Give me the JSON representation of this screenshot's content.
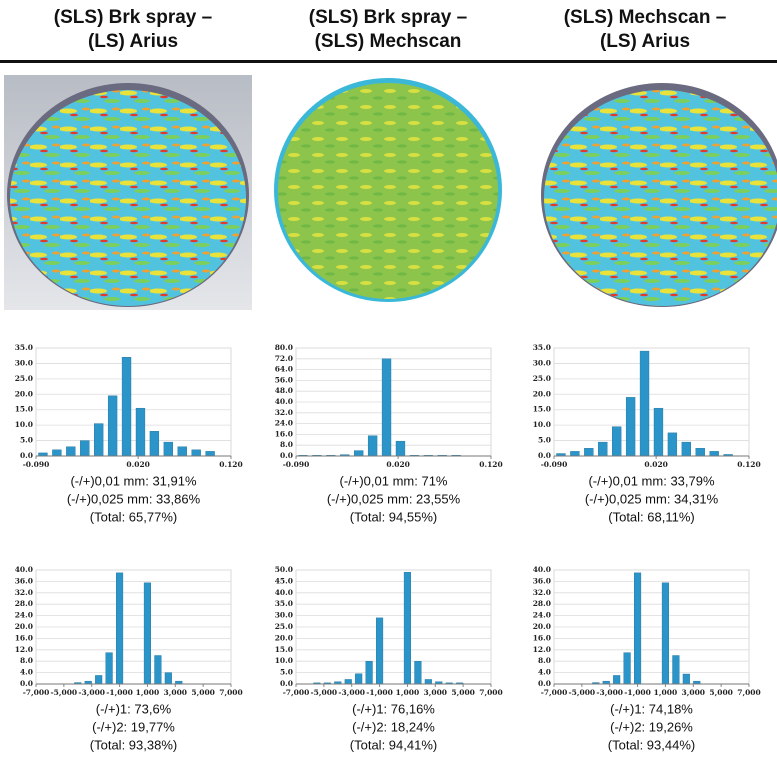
{
  "columns": [
    {
      "title": [
        "(SLS) Brk spray –",
        "(LS) Arius"
      ]
    },
    {
      "title": [
        "(SLS) Brk spray –",
        "(SLS) Mechscan"
      ]
    },
    {
      "title": [
        "(SLS) Mechscan –",
        "(LS) Arius"
      ]
    }
  ],
  "chart_data": [
    {
      "type": "histogram",
      "color": "#2b95c9",
      "grid": true,
      "bins": [
        -0.09,
        -0.075,
        -0.06,
        -0.045,
        -0.03,
        -0.015,
        0,
        0.015,
        0.03,
        0.045,
        0.06,
        0.075,
        0.09,
        0.105
      ],
      "values": [
        1,
        2,
        3,
        5,
        10.5,
        19.5,
        32,
        15.5,
        8,
        4.5,
        3,
        2,
        1.5
      ],
      "xlim": [
        -0.09,
        0.12
      ],
      "xticks": [
        {
          "value": -0.09,
          "label": "-0.090"
        },
        {
          "value": 0.02,
          "label": "0.020"
        },
        {
          "value": 0.12,
          "label": "0.120"
        }
      ],
      "ylim": [
        0,
        35
      ],
      "yticks": [
        {
          "value": 0,
          "label": "0.0"
        },
        {
          "value": 5,
          "label": "5.0"
        },
        {
          "value": 10,
          "label": "10.0"
        },
        {
          "value": 15,
          "label": "15.0"
        },
        {
          "value": 20,
          "label": "20.0"
        },
        {
          "value": 25,
          "label": "25.0"
        },
        {
          "value": 30,
          "label": "30.0"
        },
        {
          "value": 35,
          "label": "35.0"
        }
      ],
      "annotations": [
        "(-/+)0,01 mm: 31,91%",
        "(-/+)0,025 mm: 33,86%",
        "(Total: 65,77%)"
      ]
    },
    {
      "type": "histogram",
      "color": "#2b95c9",
      "grid": true,
      "bins": [
        -0.09,
        -0.075,
        -0.06,
        -0.045,
        -0.03,
        -0.015,
        0,
        0.015,
        0.03,
        0.045,
        0.06,
        0.075,
        0.09,
        0.105
      ],
      "values": [
        0.5,
        0.5,
        0.5,
        1,
        4,
        15,
        72,
        11,
        0.5,
        0.5,
        0.5,
        0.5,
        0
      ],
      "xlim": [
        -0.09,
        0.12
      ],
      "xticks": [
        {
          "value": -0.09,
          "label": "-0.090"
        },
        {
          "value": 0.02,
          "label": "0.020"
        },
        {
          "value": 0.12,
          "label": "0.120"
        }
      ],
      "ylim": [
        0,
        80
      ],
      "yticks": [
        {
          "value": 0,
          "label": "0.0"
        },
        {
          "value": 8,
          "label": "8.0"
        },
        {
          "value": 16,
          "label": "16.0"
        },
        {
          "value": 24,
          "label": "24.0"
        },
        {
          "value": 32,
          "label": "32.0"
        },
        {
          "value": 40,
          "label": "40.0"
        },
        {
          "value": 48,
          "label": "48.0"
        },
        {
          "value": 56,
          "label": "56.0"
        },
        {
          "value": 64,
          "label": "64.0"
        },
        {
          "value": 72,
          "label": "72.0"
        },
        {
          "value": 80,
          "label": "80.0"
        }
      ],
      "annotations": [
        "(-/+)0,01 mm: 71%",
        "(-/+)0,025 mm: 23,55%",
        "(Total: 94,55%)"
      ]
    },
    {
      "type": "histogram",
      "color": "#2b95c9",
      "grid": true,
      "bins": [
        -0.09,
        -0.075,
        -0.06,
        -0.045,
        -0.03,
        -0.015,
        0,
        0.015,
        0.03,
        0.045,
        0.06,
        0.075,
        0.09,
        0.105
      ],
      "values": [
        0.8,
        1.5,
        2.5,
        4.5,
        9.5,
        19,
        34,
        15.5,
        7.5,
        4.5,
        2.5,
        1.5,
        0.5
      ],
      "xlim": [
        -0.09,
        0.12
      ],
      "xticks": [
        {
          "value": -0.09,
          "label": "-0.090"
        },
        {
          "value": 0.02,
          "label": "0.020"
        },
        {
          "value": 0.12,
          "label": "0.120"
        }
      ],
      "ylim": [
        0,
        35
      ],
      "yticks": [
        {
          "value": 0,
          "label": "0.0"
        },
        {
          "value": 5,
          "label": "5.0"
        },
        {
          "value": 10,
          "label": "10.0"
        },
        {
          "value": 15,
          "label": "15.0"
        },
        {
          "value": 20,
          "label": "20.0"
        },
        {
          "value": 25,
          "label": "25.0"
        },
        {
          "value": 30,
          "label": "30.0"
        },
        {
          "value": 35,
          "label": "35.0"
        }
      ],
      "annotations": [
        "(-/+)0,01 mm: 33,79%",
        "(-/+)0,025 mm: 34,31%",
        "(Total: 68,11%)"
      ]
    },
    {
      "type": "histogram",
      "color": "#2b95c9",
      "grid": true,
      "bins": [
        -6625,
        -5875,
        -5125,
        -4375,
        -3625,
        -2875,
        -2125,
        -1375,
        -625,
        625,
        1375,
        2125,
        2875,
        3625,
        4375,
        5125,
        5875,
        6625
      ],
      "values": [
        0,
        0,
        0,
        0.5,
        1,
        3,
        11,
        39,
        0,
        35.5,
        10,
        4,
        1,
        0,
        0,
        0,
        0
      ],
      "xlim": [
        -7000,
        7000
      ],
      "xticks": [
        {
          "value": -7000,
          "label": "-7,000"
        },
        {
          "value": -5000,
          "label": "-5,000"
        },
        {
          "value": -3000,
          "label": "-3,000"
        },
        {
          "value": -1000,
          "label": "-1,000"
        },
        {
          "value": 1000,
          "label": "1,000"
        },
        {
          "value": 3000,
          "label": "3,000"
        },
        {
          "value": 5000,
          "label": "5,000"
        },
        {
          "value": 7000,
          "label": "7,000"
        }
      ],
      "ylim": [
        0,
        40
      ],
      "yticks": [
        {
          "value": 0,
          "label": "0.0"
        },
        {
          "value": 4,
          "label": "4.0"
        },
        {
          "value": 8,
          "label": "8.0"
        },
        {
          "value": 12,
          "label": "12.0"
        },
        {
          "value": 16,
          "label": "16.0"
        },
        {
          "value": 20,
          "label": "20.0"
        },
        {
          "value": 24,
          "label": "24.0"
        },
        {
          "value": 28,
          "label": "28.0"
        },
        {
          "value": 32,
          "label": "32.0"
        },
        {
          "value": 36,
          "label": "36.0"
        },
        {
          "value": 40,
          "label": "40.0"
        }
      ],
      "annotations": [
        "(-/+)1: 73,6%",
        "(-/+)2: 19,77%",
        "(Total: 93,38%)"
      ]
    },
    {
      "type": "histogram",
      "color": "#2b95c9",
      "grid": true,
      "bins": [
        -6625,
        -5875,
        -5125,
        -4375,
        -3625,
        -2875,
        -2125,
        -1375,
        -625,
        625,
        1375,
        2125,
        2875,
        3625,
        4375,
        5125,
        5875,
        6625
      ],
      "values": [
        0,
        0.5,
        0.5,
        1,
        2,
        4.5,
        10,
        29,
        0,
        49,
        10,
        2,
        1,
        0.5,
        0.5,
        0,
        0
      ],
      "xlim": [
        -7000,
        7000
      ],
      "xticks": [
        {
          "value": -7000,
          "label": "-7,000"
        },
        {
          "value": -5000,
          "label": "-5,000"
        },
        {
          "value": -3000,
          "label": "-3,000"
        },
        {
          "value": -1000,
          "label": "-1,000"
        },
        {
          "value": 1000,
          "label": "1,000"
        },
        {
          "value": 3000,
          "label": "3,000"
        },
        {
          "value": 5000,
          "label": "5,000"
        },
        {
          "value": 7000,
          "label": "7,000"
        }
      ],
      "ylim": [
        0,
        50
      ],
      "yticks": [
        {
          "value": 0,
          "label": "0.0"
        },
        {
          "value": 5,
          "label": "5.0"
        },
        {
          "value": 10,
          "label": "10.0"
        },
        {
          "value": 15,
          "label": "15.0"
        },
        {
          "value": 20,
          "label": "20.0"
        },
        {
          "value": 25,
          "label": "25.0"
        },
        {
          "value": 30,
          "label": "30.0"
        },
        {
          "value": 35,
          "label": "35.0"
        },
        {
          "value": 40,
          "label": "40.0"
        },
        {
          "value": 45,
          "label": "45.0"
        },
        {
          "value": 50,
          "label": "50.0"
        }
      ],
      "annotations": [
        "(-/+)1: 76,16%",
        "(-/+)2: 18,24%",
        "(Total: 94,41%)"
      ]
    },
    {
      "type": "histogram",
      "color": "#2b95c9",
      "grid": true,
      "bins": [
        -6625,
        -5875,
        -5125,
        -4375,
        -3625,
        -2875,
        -2125,
        -1375,
        -625,
        625,
        1375,
        2125,
        2875,
        3625,
        4375,
        5125,
        5875,
        6625
      ],
      "values": [
        0,
        0,
        0,
        0.5,
        1,
        3,
        11,
        39,
        0,
        35.5,
        10,
        3.5,
        1,
        0,
        0,
        0,
        0
      ],
      "xlim": [
        -7000,
        7000
      ],
      "xticks": [
        {
          "value": -7000,
          "label": "-7,000"
        },
        {
          "value": -5000,
          "label": "-5,000"
        },
        {
          "value": -3000,
          "label": "-3,000"
        },
        {
          "value": -1000,
          "label": "-1,000"
        },
        {
          "value": 1000,
          "label": "1,000"
        },
        {
          "value": 3000,
          "label": "3,000"
        },
        {
          "value": 5000,
          "label": "5,000"
        },
        {
          "value": 7000,
          "label": "7,000"
        }
      ],
      "ylim": [
        0,
        40
      ],
      "yticks": [
        {
          "value": 0,
          "label": "0.0"
        },
        {
          "value": 4,
          "label": "4.0"
        },
        {
          "value": 8,
          "label": "8.0"
        },
        {
          "value": 12,
          "label": "12.0"
        },
        {
          "value": 16,
          "label": "16.0"
        },
        {
          "value": 20,
          "label": "20.0"
        },
        {
          "value": 24,
          "label": "24.0"
        },
        {
          "value": 28,
          "label": "28.0"
        },
        {
          "value": 32,
          "label": "32.0"
        },
        {
          "value": 36,
          "label": "36.0"
        },
        {
          "value": 40,
          "label": "40.0"
        }
      ],
      "annotations": [
        "(-/+)1: 74,18%",
        "(-/+)2: 19,26%",
        "(Total: 93,44%)"
      ]
    }
  ]
}
